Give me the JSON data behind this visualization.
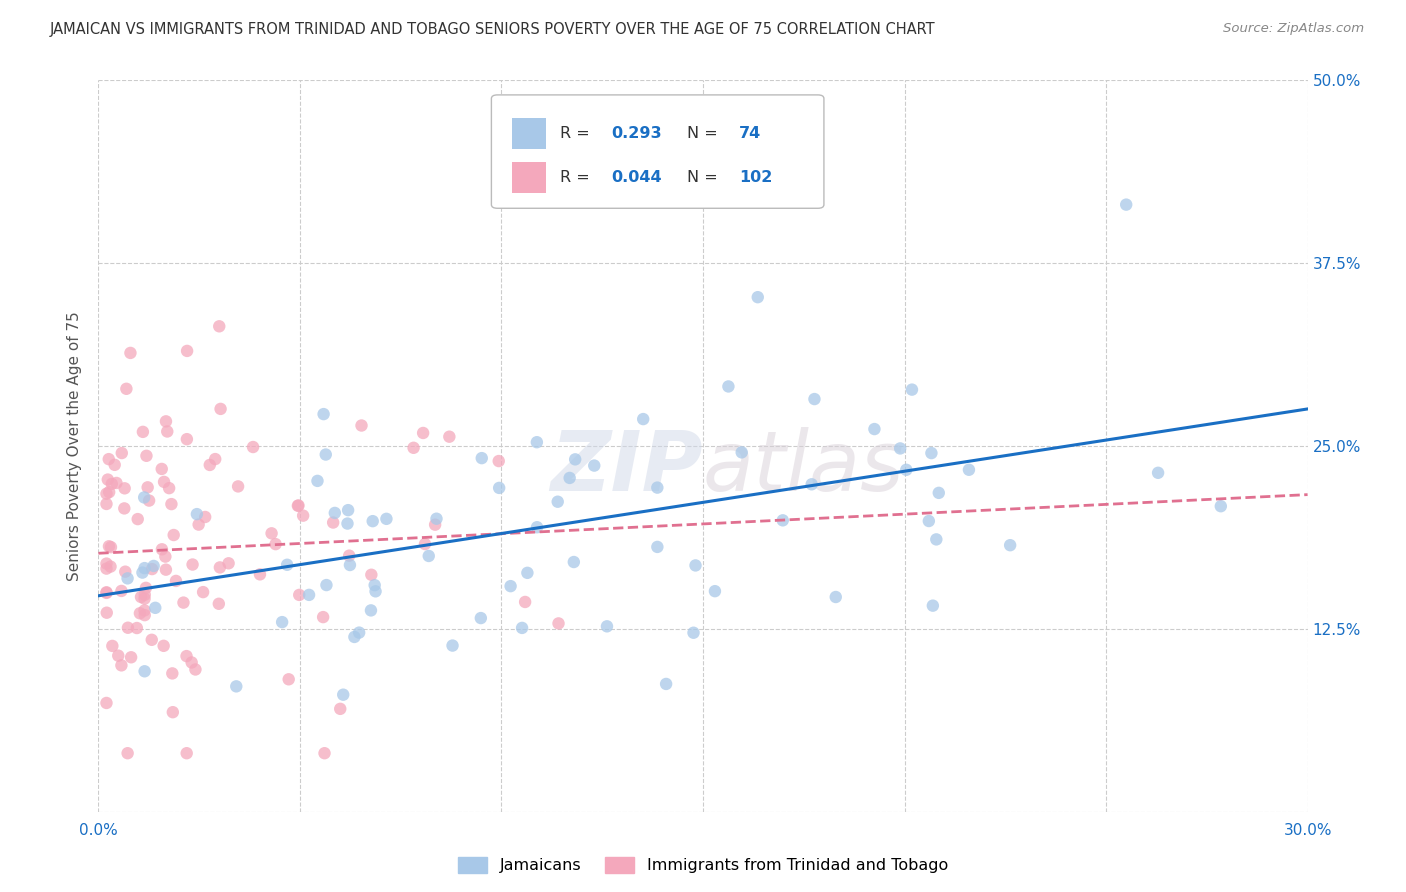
{
  "title": "JAMAICAN VS IMMIGRANTS FROM TRINIDAD AND TOBAGO SENIORS POVERTY OVER THE AGE OF 75 CORRELATION CHART",
  "source": "Source: ZipAtlas.com",
  "ylabel": "Seniors Poverty Over the Age of 75",
  "xlim": [
    0.0,
    0.3
  ],
  "ylim": [
    0.0,
    0.5
  ],
  "xtick_labels": [
    "0.0%",
    "",
    "",
    "",
    "",
    "",
    "30.0%"
  ],
  "ytick_labels": [
    "",
    "12.5%",
    "25.0%",
    "37.5%",
    "50.0%"
  ],
  "jamaicans_R": 0.293,
  "jamaicans_N": 74,
  "trinidad_R": 0.044,
  "trinidad_N": 102,
  "jamaicans_color": "#A8C8E8",
  "trinidad_color": "#F4A8BC",
  "trendline_jamaicans_color": "#1A6FC4",
  "trendline_trinidad_color": "#E07090",
  "watermark": "ZIPatlas",
  "background_color": "#ffffff",
  "grid_color": "#cccccc",
  "title_color": "#333333",
  "axis_label_color": "#555555",
  "tick_label_color": "#1A6FC4"
}
